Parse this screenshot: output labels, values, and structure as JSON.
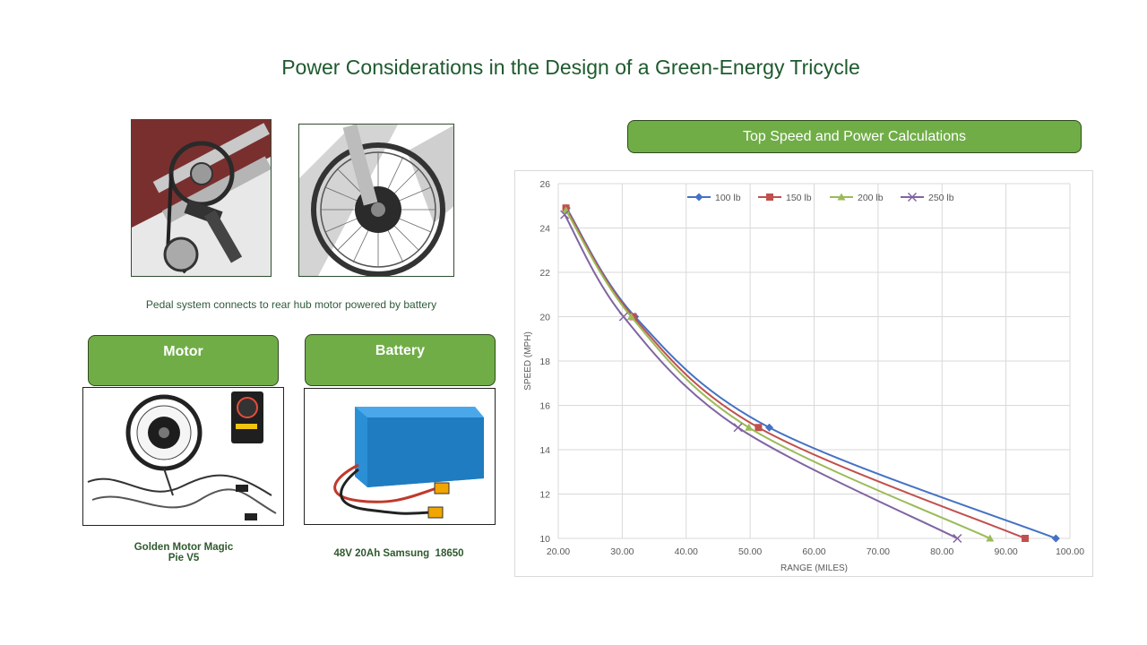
{
  "slide": {
    "title": "Power Considerations in the Design of a Green-Energy Tricycle",
    "photo_caption": "Pedal system connects to rear hub motor powered by battery",
    "chart_header": "Top Speed and Power Calculations",
    "motor": {
      "label": "Motor",
      "caption_line1": "Golden Motor Magic",
      "caption_line2": "Pie V5"
    },
    "battery": {
      "label": "Battery",
      "caption": "48V 20Ah Samsung  18650"
    }
  },
  "colors": {
    "title": "#1e5a2e",
    "box_fill": "#70ad47",
    "series": [
      "#4472c4",
      "#c0504d",
      "#9bbb59",
      "#8064a2"
    ]
  },
  "chart_data": {
    "type": "line",
    "title": "",
    "xlabel": "RANGE (MILES)",
    "ylabel": "SPEED (MPH)",
    "xlim": [
      20,
      100
    ],
    "ylim": [
      10,
      26
    ],
    "x_ticks": [
      "20.00",
      "30.00",
      "40.00",
      "50.00",
      "60.00",
      "70.00",
      "80.00",
      "90.00",
      "100.00"
    ],
    "y_ticks": [
      "10",
      "12",
      "14",
      "16",
      "18",
      "20",
      "22",
      "24",
      "26"
    ],
    "grid": true,
    "legend_position": "top",
    "series": [
      {
        "name": "100 lb",
        "marker": "diamond",
        "points": [
          [
            21.3,
            24.9
          ],
          [
            32.0,
            20.0
          ],
          [
            53.0,
            15.0
          ],
          [
            97.8,
            10.0
          ]
        ]
      },
      {
        "name": "150 lb",
        "marker": "square",
        "points": [
          [
            21.2,
            24.9
          ],
          [
            31.7,
            20.0
          ],
          [
            51.3,
            15.0
          ],
          [
            93.0,
            10.0
          ]
        ]
      },
      {
        "name": "200 lb",
        "marker": "triangle",
        "points": [
          [
            21.2,
            24.8
          ],
          [
            31.4,
            20.0
          ],
          [
            49.8,
            15.0
          ],
          [
            87.5,
            10.0
          ]
        ]
      },
      {
        "name": "250 lb",
        "marker": "x",
        "points": [
          [
            21.0,
            24.6
          ],
          [
            30.2,
            20.0
          ],
          [
            48.1,
            15.0
          ],
          [
            82.4,
            10.0
          ]
        ]
      }
    ]
  }
}
